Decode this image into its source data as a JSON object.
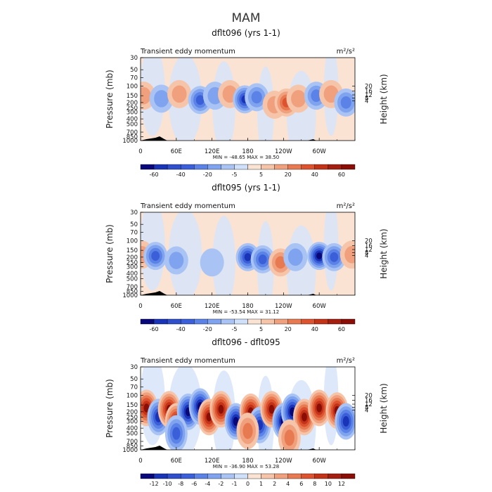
{
  "figure_title": "MAM",
  "colors": {
    "neg": [
      "#08087a",
      "#1a34b8",
      "#3a5fd8",
      "#5b82e6",
      "#7fa3ee",
      "#a9c4f4",
      "#cfe0fa"
    ],
    "pos": [
      "#fbe3d4",
      "#f6c4a8",
      "#f0a07c",
      "#e87a52",
      "#dd5330",
      "#c33318",
      "#8a0e06"
    ],
    "topography": "#000000"
  },
  "chart_data": [
    {
      "type": "contour",
      "title": "dflt096 (yrs 1-1)",
      "left_label": "Transient eddy momentum",
      "right_label": "m²/s²",
      "ylabel": "Pressure (mb)",
      "ylabel_right": "Height (km)",
      "x_ticks": [
        "0",
        "60E",
        "120E",
        "180",
        "120W",
        "60W"
      ],
      "y_ticks": [
        "30",
        "50",
        "70",
        "100",
        "150",
        "200",
        "250",
        "300",
        "400",
        "500",
        "700",
        "850",
        "1000"
      ],
      "height_ticks": [
        "20",
        "16",
        "12",
        "8",
        "4"
      ],
      "min_max": "MIN = -48.65   MAX =  38.50",
      "colorbar_levels": [
        "-60",
        "-40",
        "-20",
        "-5",
        "5",
        "20",
        "40",
        "60"
      ],
      "features": [
        {
          "lon": 5,
          "p": 150,
          "value": 15
        },
        {
          "lon": 35,
          "p": 170,
          "value": -12
        },
        {
          "lon": 65,
          "p": 140,
          "value": 10
        },
        {
          "lon": 100,
          "p": 180,
          "value": -35
        },
        {
          "lon": 125,
          "p": 150,
          "value": -15
        },
        {
          "lon": 150,
          "p": 140,
          "value": 12
        },
        {
          "lon": 175,
          "p": 175,
          "value": -45
        },
        {
          "lon": 195,
          "p": 160,
          "value": -20
        },
        {
          "lon": 225,
          "p": 220,
          "value": 18
        },
        {
          "lon": 245,
          "p": 200,
          "value": 36
        },
        {
          "lon": 265,
          "p": 170,
          "value": 12
        },
        {
          "lon": 295,
          "p": 150,
          "value": -25
        },
        {
          "lon": 320,
          "p": 140,
          "value": 10
        },
        {
          "lon": 345,
          "p": 200,
          "value": -25
        }
      ]
    },
    {
      "type": "contour",
      "title": "dflt095 (yrs 1-1)",
      "left_label": "Transient eddy momentum",
      "right_label": "m²/s²",
      "ylabel": "Pressure (mb)",
      "ylabel_right": "Height (km)",
      "x_ticks": [
        "0",
        "60E",
        "120E",
        "180",
        "120W",
        "60W"
      ],
      "y_ticks": [
        "30",
        "50",
        "70",
        "100",
        "150",
        "200",
        "250",
        "300",
        "400",
        "500",
        "700",
        "850",
        "1000"
      ],
      "height_ticks": [
        "20",
        "16",
        "12",
        "8",
        "4"
      ],
      "min_max": "MIN = -53.54   MAX =  31.12",
      "colorbar_levels": [
        "-60",
        "-40",
        "-20",
        "-5",
        "5",
        "20",
        "40",
        "60"
      ],
      "features": [
        {
          "lon": 2,
          "p": 180,
          "value": 12
        },
        {
          "lon": 25,
          "p": 190,
          "value": -35
        },
        {
          "lon": 60,
          "p": 230,
          "value": -10
        },
        {
          "lon": 120,
          "p": 250,
          "value": -8
        },
        {
          "lon": 180,
          "p": 200,
          "value": -45
        },
        {
          "lon": 205,
          "p": 220,
          "value": -30
        },
        {
          "lon": 235,
          "p": 250,
          "value": 25
        },
        {
          "lon": 260,
          "p": 200,
          "value": -10
        },
        {
          "lon": 300,
          "p": 190,
          "value": -50
        },
        {
          "lon": 325,
          "p": 200,
          "value": -30
        },
        {
          "lon": 355,
          "p": 180,
          "value": 15
        }
      ]
    },
    {
      "type": "contour",
      "title": "dflt096 - dflt095",
      "left_label": "Transient eddy momentum",
      "right_label": "m²/s²",
      "ylabel": "Pressure (mb)",
      "ylabel_right": "Height (km)",
      "x_ticks": [
        "0",
        "60E",
        "120E",
        "180",
        "120W",
        "60W"
      ],
      "y_ticks": [
        "30",
        "50",
        "70",
        "100",
        "150",
        "200",
        "250",
        "300",
        "400",
        "500",
        "700",
        "850",
        "1000"
      ],
      "height_ticks": [
        "20",
        "16",
        "12",
        "8",
        "4"
      ],
      "min_max": "MIN = -36.90   MAX =  53.28",
      "colorbar_levels": [
        "-12",
        "-10",
        "-8",
        "-6",
        "-4",
        "-2",
        "-1",
        "0",
        "1",
        "2",
        "4",
        "6",
        "8",
        "10",
        "12"
      ],
      "features": [
        {
          "lon": 10,
          "p": 170,
          "value": 14
        },
        {
          "lon": 30,
          "p": 250,
          "value": -8
        },
        {
          "lon": 48,
          "p": 180,
          "value": 12
        },
        {
          "lon": 60,
          "p": 300,
          "value": 10
        },
        {
          "lon": 80,
          "p": 200,
          "value": -10
        },
        {
          "lon": 100,
          "p": 160,
          "value": -13
        },
        {
          "lon": 115,
          "p": 250,
          "value": 10
        },
        {
          "lon": 135,
          "p": 180,
          "value": 12
        },
        {
          "lon": 160,
          "p": 300,
          "value": -12
        },
        {
          "lon": 185,
          "p": 200,
          "value": 14
        },
        {
          "lon": 200,
          "p": 350,
          "value": -8
        },
        {
          "lon": 220,
          "p": 180,
          "value": 13
        },
        {
          "lon": 240,
          "p": 300,
          "value": -13
        },
        {
          "lon": 255,
          "p": 200,
          "value": -10
        },
        {
          "lon": 275,
          "p": 250,
          "value": 10
        },
        {
          "lon": 300,
          "p": 170,
          "value": 14
        },
        {
          "lon": 330,
          "p": 190,
          "value": 14
        },
        {
          "lon": 345,
          "p": 300,
          "value": -8
        },
        {
          "lon": 180,
          "p": 450,
          "value": 5
        },
        {
          "lon": 60,
          "p": 500,
          "value": -6
        },
        {
          "lon": 250,
          "p": 600,
          "value": 4
        }
      ]
    }
  ]
}
